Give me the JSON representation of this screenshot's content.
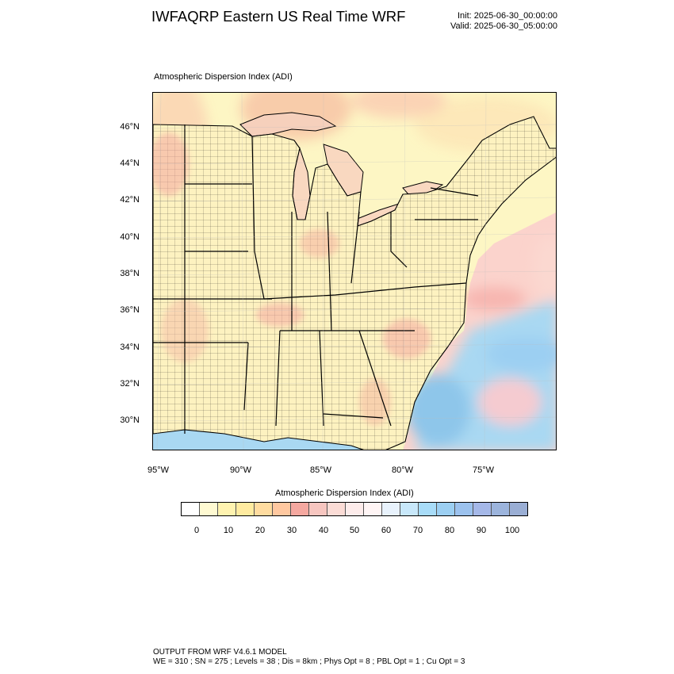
{
  "header": {
    "title": "IWFAQRP Eastern US Real Time WRF",
    "init": "Init: 2025-06-30_00:00:00",
    "valid": "Valid: 2025-06-30_05:00:00"
  },
  "plot": {
    "title": "Atmospheric Dispersion Index   (ADI)",
    "lat_labels": [
      "46°N",
      "44°N",
      "42°N",
      "40°N",
      "38°N",
      "36°N",
      "34°N",
      "32°N",
      "30°N"
    ],
    "lon_labels": [
      "95°W",
      "90°W",
      "85°W",
      "80°W",
      "75°W"
    ]
  },
  "colorbar": {
    "title": "Atmospheric Dispersion Index  (ADI)",
    "tick_labels": [
      "0",
      "10",
      "20",
      "30",
      "40",
      "50",
      "60",
      "70",
      "80",
      "90",
      "100"
    ],
    "colors": [
      "#ffffff",
      "#fffad2",
      "#fff3b0",
      "#ffeba0",
      "#ffdca0",
      "#ffc8a0",
      "#f5a8a0",
      "#f7c6c0",
      "#fbdcd6",
      "#fdeceb",
      "#fff5f5",
      "#e8f2fc",
      "#c8e8fa",
      "#a8dcf8",
      "#9ccff2",
      "#9cc2ee",
      "#a5b8e8",
      "#9cb4dc",
      "#9aaed4"
    ]
  },
  "footer": {
    "line1": "OUTPUT FROM WRF V4.6.1 MODEL",
    "line2": "WE = 310 ; SN = 275 ; Levels = 38 ; Dis = 8km ; Phys Opt = 8 ; PBL Opt = 1 ; Cu Opt = 3"
  }
}
